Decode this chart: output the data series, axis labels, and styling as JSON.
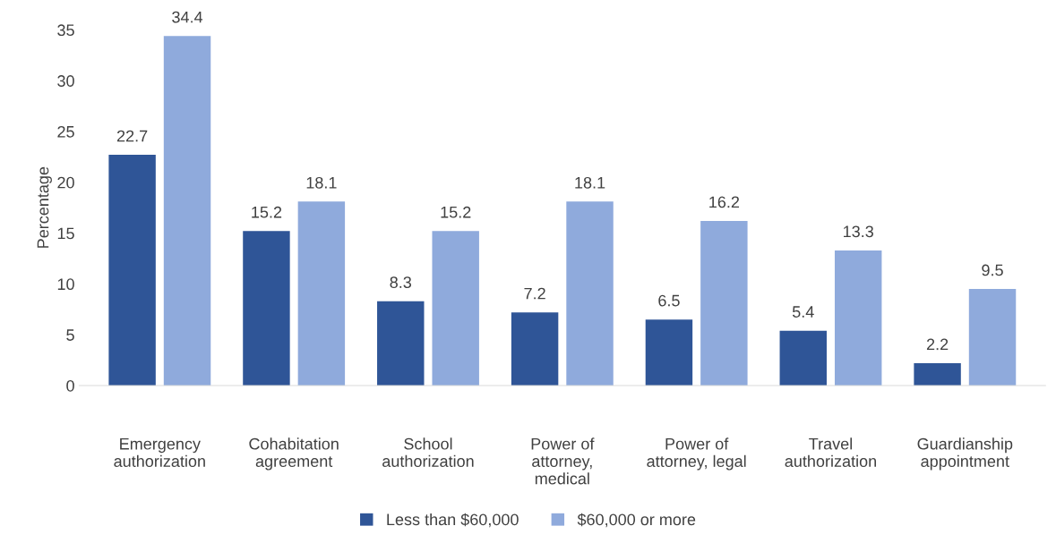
{
  "chart_data": {
    "type": "bar",
    "ylabel": "Percentage",
    "categories": [
      "Emergency\nauthorization",
      "Cohabitation\nagreement",
      "School\nauthorization",
      "Power of\nattorney,\nmedical",
      "Power of\nattorney, legal",
      "Travel\nauthorization",
      "Guardianship\nappointment"
    ],
    "series": [
      {
        "name": "Less than $60,000",
        "color": "#2f5597",
        "values": [
          22.7,
          15.2,
          8.3,
          7.2,
          6.5,
          5.4,
          2.2
        ]
      },
      {
        "name": "$60,000 or more",
        "color": "#8faadc",
        "values": [
          34.4,
          18.1,
          15.2,
          18.1,
          16.2,
          13.3,
          9.5
        ]
      }
    ],
    "ylim": [
      0,
      35
    ],
    "yticks": [
      0,
      5,
      10,
      15,
      20,
      25,
      30,
      35
    ],
    "grid": false,
    "legend": "bottom",
    "data_labels": true
  }
}
